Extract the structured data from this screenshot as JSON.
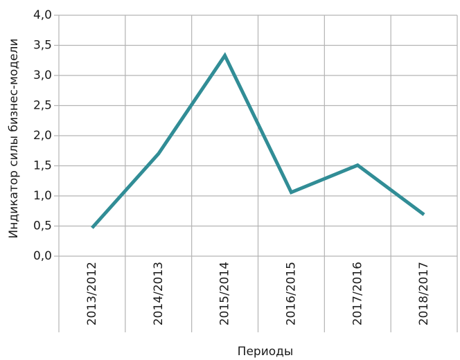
{
  "chart_data": {
    "type": "line",
    "x_label": "Периоды",
    "y_label": "Индикатор силы бизнес-модели",
    "categories": [
      "2013/2012",
      "2014/2013",
      "2015/2014",
      "2016/2015",
      "2017/2016",
      "2018/2017"
    ],
    "series": [
      {
        "name": "Индикатор силы бизнес-модели",
        "color": "#318d96",
        "values": [
          0.47,
          1.7,
          3.33,
          1.06,
          1.51,
          0.69
        ]
      }
    ],
    "ylim": [
      0,
      4
    ],
    "yticks": [
      {
        "value": 0,
        "label": "0,0"
      },
      {
        "value": 0.5,
        "label": "0,5"
      },
      {
        "value": 1,
        "label": "1,0"
      },
      {
        "value": 1.5,
        "label": "1,5"
      },
      {
        "value": 2,
        "label": "2,0"
      },
      {
        "value": 2.5,
        "label": "2,5"
      },
      {
        "value": 3,
        "label": "3,0"
      },
      {
        "value": 3.5,
        "label": "3,5"
      },
      {
        "value": 4,
        "label": "4,0"
      }
    ],
    "grid": true
  }
}
